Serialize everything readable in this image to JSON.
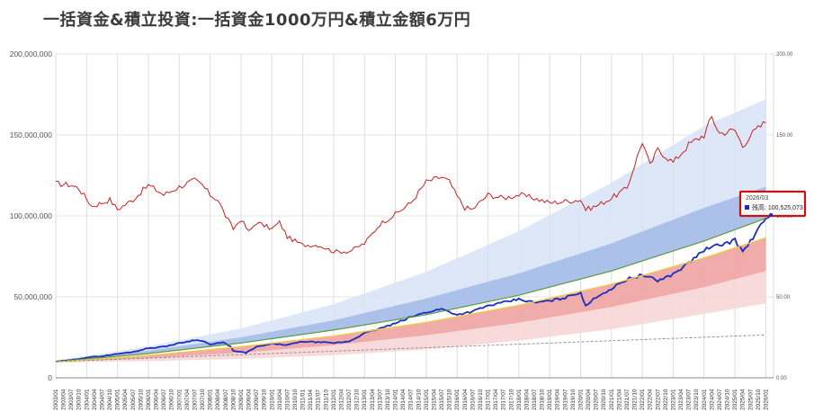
{
  "title": "一括資金&積立投資:一括資金1000万円&積立金額6万円",
  "chart_data": {
    "type": "line",
    "title": "一括資金&積立投資:一括資金1000万円&積立金額6万円",
    "x_start": "2003/01",
    "x_end": "2026/01",
    "x_tick_step_months": 3,
    "ylim": [
      0,
      200000000
    ],
    "y_ticks": [
      "0",
      "50,000,000",
      "100,000,000",
      "150,000,000",
      "200,000,000"
    ],
    "y2lim": [
      0,
      200
    ],
    "y2_ticks": [
      "0.00",
      "50.00",
      "100.00",
      "150.00",
      "200.00"
    ],
    "grid": true,
    "colors": {
      "asset": "#1a2fbf",
      "price": "#cc1f1f",
      "median": "#5c9a3a",
      "median_yellow": "#f2c94c",
      "principal": "#888888",
      "band_blue_outer": "#d8e3f7",
      "band_blue_inner": "#9fb8e6",
      "band_red_inner": "#ec9b9b",
      "band_red_outer": "#f8d6d6",
      "highlight": "#cc1111"
    },
    "series": [
      {
        "style": "blue-line",
        "points": [
          [
            "2003/01",
            10000000
          ],
          [
            "2003/07",
            11000000
          ],
          [
            "2004/01",
            12600000
          ],
          [
            "2004/07",
            13400000
          ],
          [
            "2005/01",
            14800000
          ],
          [
            "2005/07",
            16000000
          ],
          [
            "2006/01",
            18300000
          ],
          [
            "2006/07",
            19200000
          ],
          [
            "2007/01",
            21400000
          ],
          [
            "2007/07",
            23300000
          ],
          [
            "2007/10",
            23000000
          ],
          [
            "2008/01",
            20500000
          ],
          [
            "2008/06",
            21800000
          ],
          [
            "2008/09",
            19500000
          ],
          [
            "2008/10",
            16500000
          ],
          [
            "2009/03",
            15500000
          ],
          [
            "2009/07",
            19000000
          ],
          [
            "2010/01",
            21000000
          ],
          [
            "2010/07",
            20300000
          ],
          [
            "2011/01",
            22400000
          ],
          [
            "2011/07",
            22000000
          ],
          [
            "2012/01",
            21500000
          ],
          [
            "2012/07",
            22500000
          ],
          [
            "2013/01",
            27500000
          ],
          [
            "2013/07",
            30500000
          ],
          [
            "2014/01",
            33500000
          ],
          [
            "2014/07",
            37500000
          ],
          [
            "2015/01",
            40500000
          ],
          [
            "2015/07",
            42500000
          ],
          [
            "2016/01",
            39000000
          ],
          [
            "2016/07",
            41000000
          ],
          [
            "2017/01",
            44500000
          ],
          [
            "2017/07",
            46500000
          ],
          [
            "2018/01",
            48500000
          ],
          [
            "2018/07",
            46500000
          ],
          [
            "2019/01",
            47500000
          ],
          [
            "2019/07",
            49500000
          ],
          [
            "2020/01",
            53000000
          ],
          [
            "2020/03",
            44000000
          ],
          [
            "2020/07",
            50000000
          ],
          [
            "2021/01",
            55000000
          ],
          [
            "2021/07",
            61000000
          ],
          [
            "2022/01",
            63500000
          ],
          [
            "2022/07",
            60000000
          ],
          [
            "2023/01",
            64000000
          ],
          [
            "2023/07",
            71000000
          ],
          [
            "2024/01",
            79000000
          ],
          [
            "2024/07",
            82000000
          ],
          [
            "2025/01",
            85000000
          ],
          [
            "2025/04",
            78000000
          ],
          [
            "2025/07",
            84000000
          ],
          [
            "2025/10",
            92000000
          ],
          [
            "2026/03",
            100525073
          ]
        ]
      },
      {
        "style": "red-line",
        "axis": "right",
        "points": [
          [
            "2003/01",
            120
          ],
          [
            "2003/07",
            119
          ],
          [
            "2003/10",
            117
          ],
          [
            "2004/03",
            106
          ],
          [
            "2004/07",
            108
          ],
          [
            "2004/10",
            110
          ],
          [
            "2005/01",
            104
          ],
          [
            "2005/07",
            110
          ],
          [
            "2006/01",
            119
          ],
          [
            "2006/07",
            113
          ],
          [
            "2007/01",
            118
          ],
          [
            "2007/07",
            122
          ],
          [
            "2007/10",
            119
          ],
          [
            "2008/01",
            113
          ],
          [
            "2008/04",
            110
          ],
          [
            "2008/07",
            100
          ],
          [
            "2008/10",
            92
          ],
          [
            "2009/01",
            98
          ],
          [
            "2009/04",
            90
          ],
          [
            "2009/07",
            96
          ],
          [
            "2010/01",
            92
          ],
          [
            "2010/04",
            96
          ],
          [
            "2010/07",
            87
          ],
          [
            "2011/01",
            82
          ],
          [
            "2011/07",
            82
          ],
          [
            "2012/01",
            78
          ],
          [
            "2012/07",
            78
          ],
          [
            "2013/01",
            83
          ],
          [
            "2013/07",
            95
          ],
          [
            "2014/01",
            101
          ],
          [
            "2014/07",
            108
          ],
          [
            "2015/01",
            121
          ],
          [
            "2015/07",
            124
          ],
          [
            "2015/10",
            121
          ],
          [
            "2016/01",
            112
          ],
          [
            "2016/04",
            105
          ],
          [
            "2016/07",
            104
          ],
          [
            "2017/01",
            113
          ],
          [
            "2017/07",
            111
          ],
          [
            "2018/01",
            113
          ],
          [
            "2018/07",
            111
          ],
          [
            "2019/01",
            108
          ],
          [
            "2019/07",
            109
          ],
          [
            "2020/01",
            110
          ],
          [
            "2020/03",
            104
          ],
          [
            "2020/07",
            106
          ],
          [
            "2021/01",
            111
          ],
          [
            "2021/07",
            117
          ],
          [
            "2022/01",
            146
          ],
          [
            "2022/04",
            131
          ],
          [
            "2022/07",
            141
          ],
          [
            "2023/01",
            133
          ],
          [
            "2023/07",
            144
          ],
          [
            "2024/01",
            150
          ],
          [
            "2024/04",
            161
          ],
          [
            "2024/07",
            151
          ],
          [
            "2025/01",
            153
          ],
          [
            "2025/04",
            143
          ],
          [
            "2025/07",
            150
          ],
          [
            "2026/01",
            158
          ]
        ]
      },
      {
        "style": "green-line",
        "points": [
          [
            "2003/01",
            10000000
          ],
          [
            "2006/01",
            15000000
          ],
          [
            "2009/01",
            21500000
          ],
          [
            "2012/01",
            29500000
          ],
          [
            "2015/01",
            39000000
          ],
          [
            "2018/01",
            51000000
          ],
          [
            "2021/01",
            66000000
          ],
          [
            "2024/01",
            84500000
          ],
          [
            "2026/01",
            98500000
          ]
        ]
      },
      {
        "style": "yellow-line",
        "points": [
          [
            "2003/01",
            9800000
          ],
          [
            "2006/01",
            13800000
          ],
          [
            "2009/01",
            19200000
          ],
          [
            "2012/01",
            25800000
          ],
          [
            "2015/01",
            34200000
          ],
          [
            "2018/01",
            44800000
          ],
          [
            "2021/01",
            57800000
          ],
          [
            "2024/01",
            74000000
          ],
          [
            "2026/01",
            86500000
          ]
        ]
      },
      {
        "style": "dashed-line",
        "points": [
          [
            "2003/01",
            10000000
          ],
          [
            "2026/01",
            26500000
          ]
        ]
      }
    ],
    "bands": [
      {
        "style": "blue-outer",
        "lower_ref": "green",
        "upper": [
          [
            "2003/01",
            10500000
          ],
          [
            "2006/01",
            19500000
          ],
          [
            "2009/01",
            30500000
          ],
          [
            "2012/01",
            45500000
          ],
          [
            "2015/01",
            65500000
          ],
          [
            "2018/01",
            90500000
          ],
          [
            "2021/01",
            120500000
          ],
          [
            "2024/01",
            155500000
          ],
          [
            "2026/01",
            172000000
          ]
        ]
      },
      {
        "style": "blue-inner",
        "lower_ref": "green",
        "upper": [
          [
            "2003/01",
            10200000
          ],
          [
            "2006/01",
            16800000
          ],
          [
            "2009/01",
            25000000
          ],
          [
            "2012/01",
            35500000
          ],
          [
            "2015/01",
            49000000
          ],
          [
            "2018/01",
            64500000
          ],
          [
            "2021/01",
            83000000
          ],
          [
            "2024/01",
            105000000
          ],
          [
            "2026/01",
            118000000
          ]
        ]
      },
      {
        "style": "red-outer",
        "upper_ref": "yellow",
        "lower": [
          [
            "2003/01",
            9500000
          ],
          [
            "2006/01",
            10300000
          ],
          [
            "2009/01",
            11700000
          ],
          [
            "2012/01",
            14000000
          ],
          [
            "2015/01",
            17500000
          ],
          [
            "2018/01",
            23000000
          ],
          [
            "2021/01",
            30000000
          ],
          [
            "2024/01",
            39500000
          ],
          [
            "2026/01",
            46000000
          ]
        ]
      },
      {
        "style": "red-inner",
        "upper_ref": "yellow",
        "lower": [
          [
            "2003/01",
            9700000
          ],
          [
            "2006/01",
            12200000
          ],
          [
            "2009/01",
            15500000
          ],
          [
            "2012/01",
            20200000
          ],
          [
            "2015/01",
            26300000
          ],
          [
            "2018/01",
            34000000
          ],
          [
            "2021/01",
            43800000
          ],
          [
            "2024/01",
            56000000
          ],
          [
            "2026/01",
            66000000
          ]
        ]
      }
    ],
    "tooltip": {
      "date": "2026/03",
      "label": "残高: 100,525,073",
      "value": 100525073
    }
  }
}
